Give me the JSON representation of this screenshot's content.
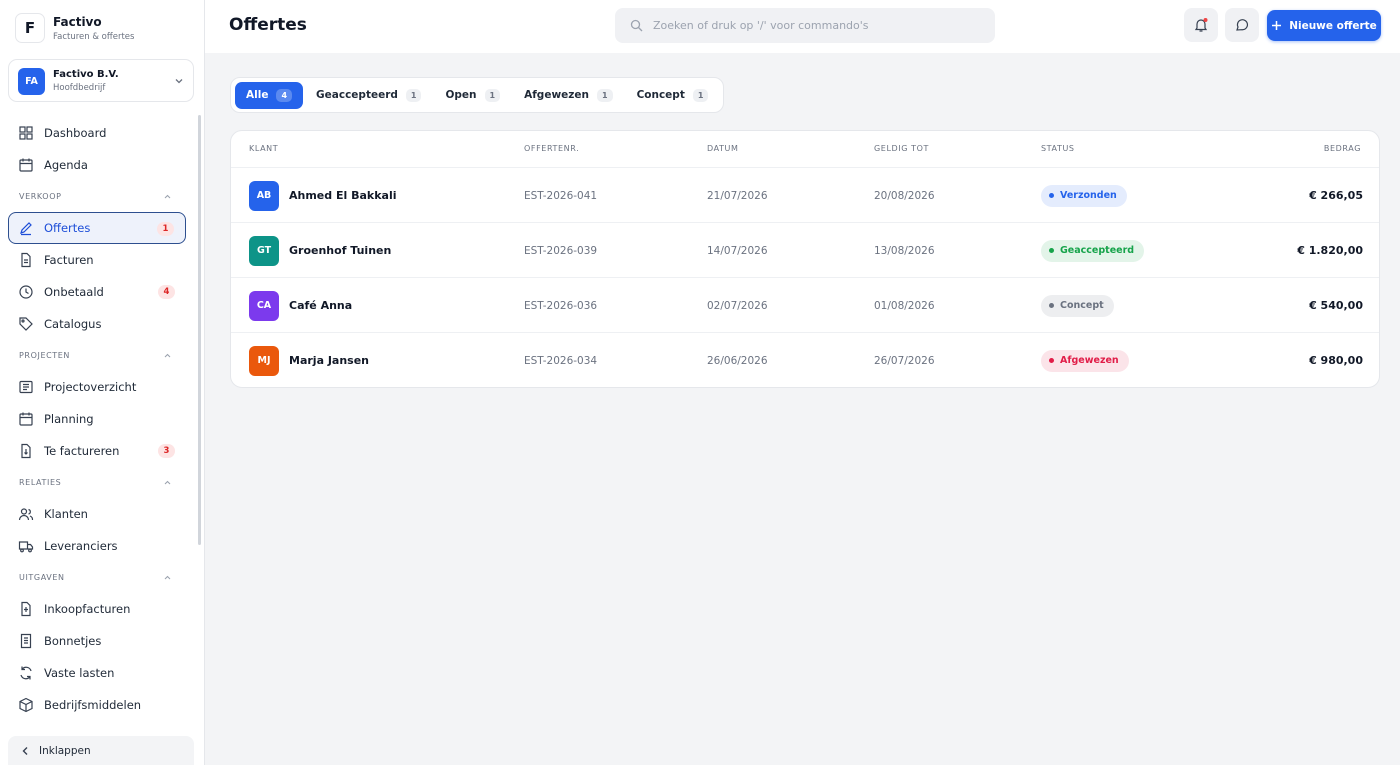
{
  "app": {
    "logo": "F",
    "name": "Factivo",
    "tagline": "Facturen & offertes"
  },
  "company": {
    "initials": "FA",
    "name": "Factivo B.V.",
    "role": "Hoofdbedrijf"
  },
  "nav": [
    {
      "items": [
        {
          "label": "Dashboard"
        },
        {
          "label": "Agenda"
        }
      ]
    },
    {
      "title": "VERKOOP",
      "items": [
        {
          "label": "Offertes",
          "badge": 1,
          "active": true
        },
        {
          "label": "Facturen"
        },
        {
          "label": "Onbetaald",
          "badge": 4
        },
        {
          "label": "Catalogus"
        }
      ]
    },
    {
      "title": "PROJECTEN",
      "items": [
        {
          "label": "Projectoverzicht"
        },
        {
          "label": "Planning"
        },
        {
          "label": "Te factureren",
          "badge": 3
        }
      ]
    },
    {
      "title": "RELATIES",
      "items": [
        {
          "label": "Klanten"
        },
        {
          "label": "Leveranciers"
        }
      ]
    },
    {
      "title": "UITGAVEN",
      "items": [
        {
          "label": "Inkoopfacturen"
        },
        {
          "label": "Bonnetjes"
        },
        {
          "label": "Vaste lasten"
        },
        {
          "label": "Bedrijfsmiddelen"
        }
      ]
    }
  ],
  "collapse": "Inklappen",
  "header": {
    "title": "Offertes",
    "search_placeholder": "Zoeken of druk op '/' voor commando's",
    "new_button": "Nieuwe offerte"
  },
  "tabs": [
    {
      "label": "Alle",
      "count": 4,
      "active": true
    },
    {
      "label": "Geaccepteerd",
      "count": 1
    },
    {
      "label": "Open",
      "count": 1
    },
    {
      "label": "Afgewezen",
      "count": 1
    },
    {
      "label": "Concept",
      "count": 1
    }
  ],
  "table": {
    "columns": [
      "KLANT",
      "OFFERTENR.",
      "DATUM",
      "GELDIG TOT",
      "STATUS",
      "BEDRAG"
    ],
    "rows": [
      {
        "initials": "AB",
        "color": "#2563eb",
        "client": "Ahmed El Bakkali",
        "number": "EST-2026-041",
        "date": "21/07/2026",
        "valid_until": "20/08/2026",
        "status": "Verzonden",
        "status_color": "#2563eb",
        "amount": "€ 266,05"
      },
      {
        "initials": "GT",
        "color": "#0d9488",
        "client": "Groenhof Tuinen",
        "number": "EST-2026-039",
        "date": "14/07/2026",
        "valid_until": "13/08/2026",
        "status": "Geaccepteerd",
        "status_color": "#16a34a",
        "amount": "€ 1.820,00"
      },
      {
        "initials": "CA",
        "color": "#7c3aed",
        "client": "Café Anna",
        "number": "EST-2026-036",
        "date": "02/07/2026",
        "valid_until": "01/08/2026",
        "status": "Concept",
        "status_color": "#6b7280",
        "amount": "€ 540,00"
      },
      {
        "initials": "MJ",
        "color": "#ea580c",
        "client": "Marja Jansen",
        "number": "EST-2026-034",
        "date": "26/06/2026",
        "valid_until": "26/07/2026",
        "status": "Afgewezen",
        "status_color": "#e11d48",
        "amount": "€ 980,00"
      }
    ]
  }
}
